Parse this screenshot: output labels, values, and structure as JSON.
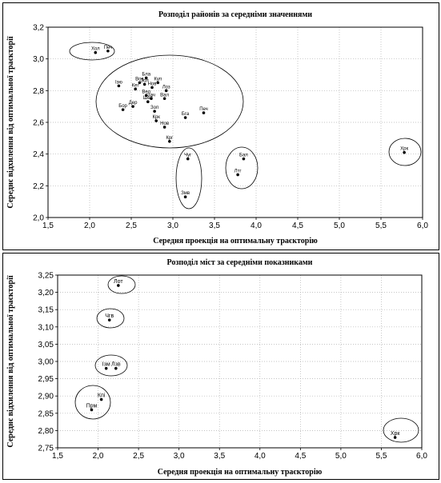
{
  "chart_data": [
    {
      "type": "scatter",
      "title": "Розподіл районів за середніми значеннями",
      "xlabel": "Середня проекція на оптимальну траєкторію",
      "ylabel": "Середнє відхилення від оптимальної траєкторії",
      "xlim": [
        1.5,
        6.0
      ],
      "ylim": [
        2.0,
        3.2
      ],
      "xticks": [
        "1,5",
        "2,0",
        "2,5",
        "3,0",
        "3,5",
        "4,0",
        "4,5",
        "5,0",
        "5,5",
        "6,0"
      ],
      "yticks": [
        "2,0",
        "2,2",
        "2,4",
        "2,6",
        "2,8",
        "3,0",
        "3,2"
      ],
      "grid": true,
      "points": [
        {
          "label": "Хол",
          "x": 2.07,
          "y": 3.04
        },
        {
          "label": "Печ",
          "x": 2.22,
          "y": 3.05
        },
        {
          "label": "Бла",
          "x": 2.68,
          "y": 2.88
        },
        {
          "label": "Вов",
          "x": 2.6,
          "y": 2.85
        },
        {
          "label": "Зол",
          "x": 2.66,
          "y": 2.84
        },
        {
          "label": "Куп",
          "x": 2.82,
          "y": 2.85
        },
        {
          "label": "Нов",
          "x": 2.75,
          "y": 2.82
        },
        {
          "label": "Ізю",
          "x": 2.35,
          "y": 2.83
        },
        {
          "label": "Кег",
          "x": 2.55,
          "y": 2.81
        },
        {
          "label": "Лоз",
          "x": 2.92,
          "y": 2.8
        },
        {
          "label": "Вел",
          "x": 2.68,
          "y": 2.77
        },
        {
          "label": "Зач",
          "x": 2.74,
          "y": 2.75
        },
        {
          "label": "Шев",
          "x": 2.7,
          "y": 2.73
        },
        {
          "label": "Вал",
          "x": 2.9,
          "y": 2.75
        },
        {
          "label": "Дер",
          "x": 2.52,
          "y": 2.7
        },
        {
          "label": "Бор",
          "x": 2.4,
          "y": 2.68
        },
        {
          "label": "Зоп",
          "x": 2.78,
          "y": 2.67
        },
        {
          "label": "Крк",
          "x": 2.8,
          "y": 2.61
        },
        {
          "label": "Бга",
          "x": 3.15,
          "y": 2.63
        },
        {
          "label": "Печ",
          "x": 3.37,
          "y": 2.66
        },
        {
          "label": "Нов",
          "x": 2.9,
          "y": 2.57
        },
        {
          "label": "Крг",
          "x": 2.96,
          "y": 2.48
        },
        {
          "label": "Чуг",
          "x": 3.18,
          "y": 2.37
        },
        {
          "label": "Бал",
          "x": 3.85,
          "y": 2.37
        },
        {
          "label": "Лтг",
          "x": 3.78,
          "y": 2.27
        },
        {
          "label": "Змв",
          "x": 3.15,
          "y": 2.13
        },
        {
          "label": "Хрк",
          "x": 5.78,
          "y": 2.41
        }
      ]
    },
    {
      "type": "scatter",
      "title": "Розподіл міст за середніми показниками",
      "xlabel": "Середня проекція на оптимальну траєкторію",
      "ylabel": "Середнє відхилення від оптимальної траєкторії",
      "xlim": [
        1.5,
        6.0
      ],
      "ylim": [
        2.75,
        3.25
      ],
      "xticks": [
        "1,5",
        "2,0",
        "2,5",
        "3,0",
        "3,5",
        "4,0",
        "4,5",
        "5,0",
        "5,5",
        "6,0"
      ],
      "yticks": [
        "2,75",
        "2,80",
        "2,85",
        "2,90",
        "2,95",
        "3,00",
        "3,05",
        "3,10",
        "3,15",
        "3,20",
        "3,25"
      ],
      "grid": true,
      "points": [
        {
          "label": "Лот",
          "x": 2.25,
          "y": 3.22
        },
        {
          "label": "Чгв",
          "x": 2.14,
          "y": 3.12
        },
        {
          "label": "Ізм",
          "x": 2.1,
          "y": 2.98
        },
        {
          "label": "Лзв",
          "x": 2.22,
          "y": 2.98
        },
        {
          "label": "Кпі",
          "x": 2.04,
          "y": 2.89
        },
        {
          "label": "Прм",
          "x": 1.92,
          "y": 2.86
        },
        {
          "label": "Хрк",
          "x": 5.67,
          "y": 2.78
        }
      ]
    }
  ]
}
